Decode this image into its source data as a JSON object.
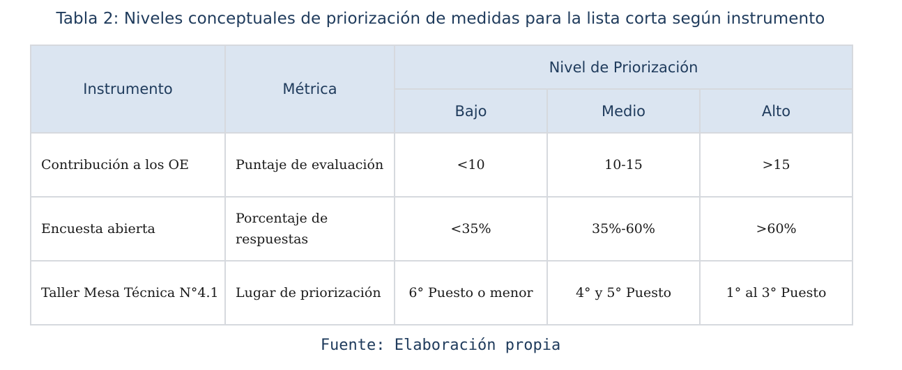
{
  "caption": "Tabla 2: Niveles conceptuales de priorización de medidas para la lista corta según instrumento",
  "headers": {
    "instrumento": "Instrumento",
    "metrica": "Métrica",
    "nivel": "Nivel de Priorización",
    "bajo": "Bajo",
    "medio": "Medio",
    "alto": "Alto"
  },
  "rows": [
    {
      "instrumento": "Contribución a los OE",
      "metrica": "Puntaje de evaluación",
      "bajo": "<10",
      "medio": "10-15",
      "alto": ">15"
    },
    {
      "instrumento": "Encuesta abierta",
      "metrica": "Porcentaje de respuestas",
      "bajo": "<35%",
      "medio": "35%-60%",
      "alto": ">60%"
    },
    {
      "instrumento": "Taller Mesa Técnica N°4.1",
      "metrica": "Lugar de priorización",
      "bajo": "6° Puesto o menor",
      "medio": "4° y 5° Puesto",
      "alto": "1° al 3° Puesto"
    }
  ],
  "source": "Fuente: Elaboración propia"
}
